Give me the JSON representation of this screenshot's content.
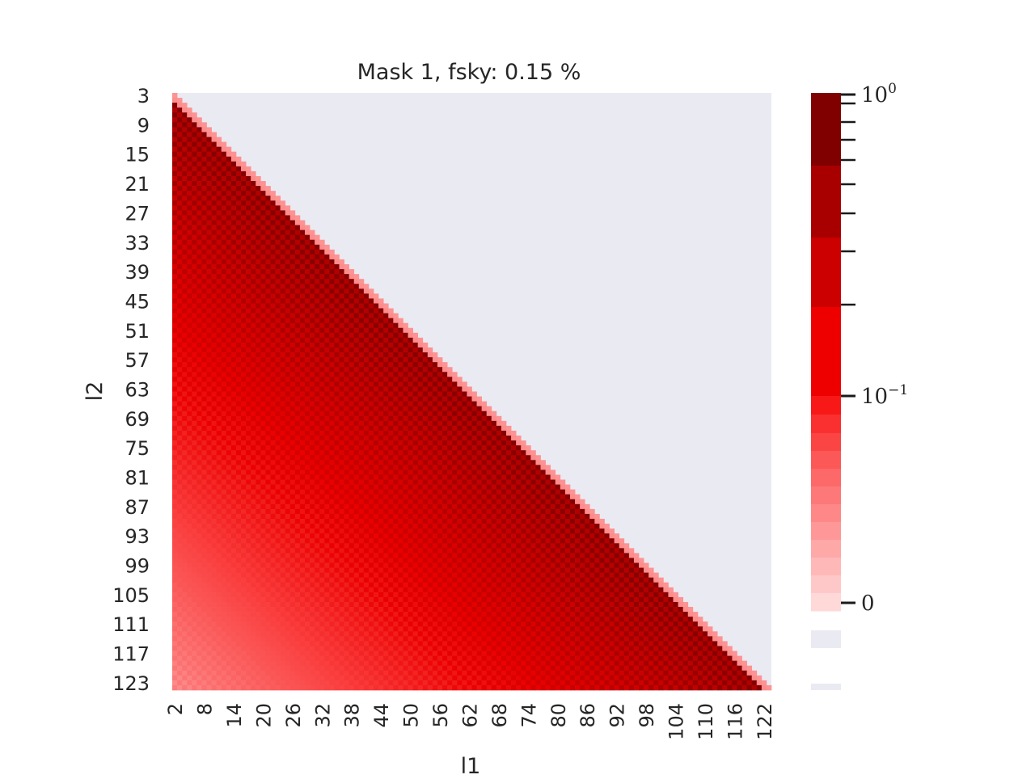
{
  "chart_data": {
    "type": "heatmap",
    "title": "Mask 1, fsky: 0.15 %",
    "xlabel": "l1",
    "ylabel": "l2",
    "x_tick_labels": [
      "2",
      "8",
      "14",
      "20",
      "26",
      "32",
      "38",
      "44",
      "50",
      "56",
      "62",
      "68",
      "74",
      "80",
      "86",
      "92",
      "98",
      "104",
      "110",
      "116",
      "122"
    ],
    "y_tick_labels": [
      "3",
      "9",
      "15",
      "21",
      "27",
      "33",
      "39",
      "45",
      "51",
      "57",
      "63",
      "69",
      "75",
      "81",
      "87",
      "93",
      "99",
      "105",
      "111",
      "117",
      "123"
    ],
    "l1_range": [
      2,
      123
    ],
    "l2_range": [
      3,
      124
    ],
    "masked_region": "upper-right triangle (l1 > l2)",
    "pattern": "checkerboard of high/low values near the diagonal, values decreasing toward lower-left",
    "colorscale": "symlog, white to dark red",
    "colorbar": {
      "major_ticks": [
        "10^0",
        "10^-1",
        "0"
      ],
      "colors": [
        "#800000",
        "#a80000",
        "#cc0000",
        "#ee0000",
        "#f81818",
        "#fa3030",
        "#fb4444",
        "#fc5858",
        "#fd6868",
        "#fd7878",
        "#fe8888",
        "#fe9898",
        "#fea8a8",
        "#ffb8b8",
        "#ffc8c8",
        "#ffd8d8"
      ],
      "nan_color": "#eaeaf2"
    },
    "grid": false
  }
}
